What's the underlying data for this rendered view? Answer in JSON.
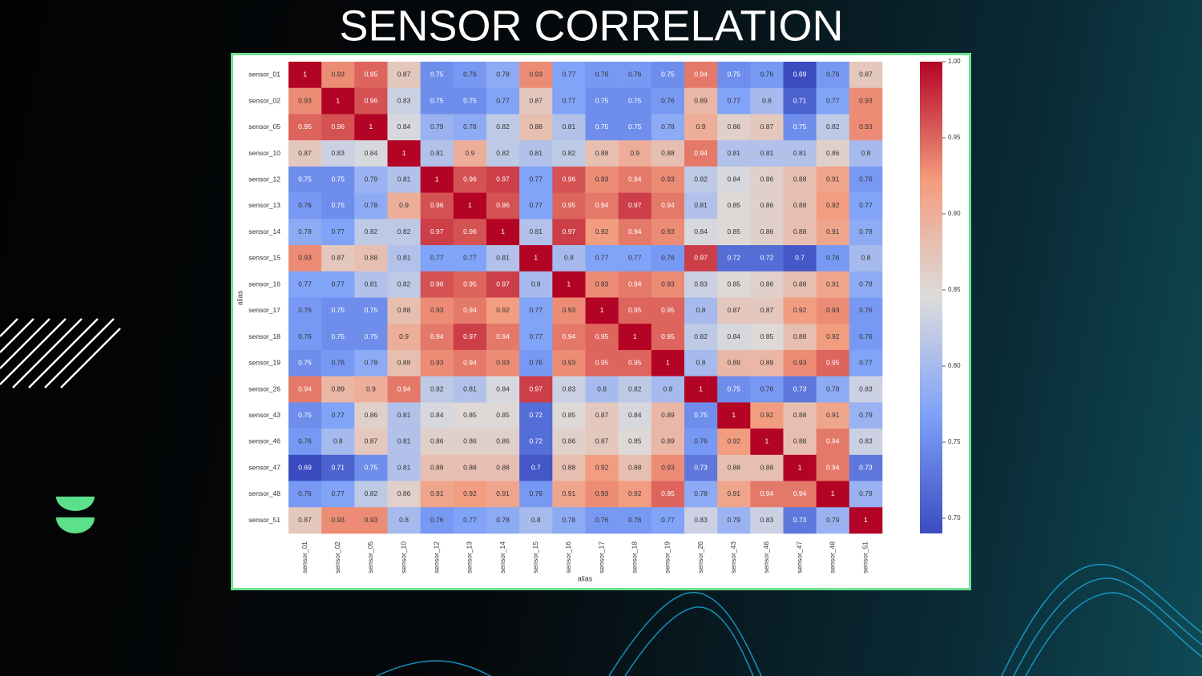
{
  "chart_data": {
    "type": "heatmap",
    "title": "SENSOR CORRELATION",
    "xlabel": "alias",
    "ylabel": "alias",
    "colormap": "coolwarm",
    "categories": [
      "sensor_01",
      "sensor_02",
      "sensor_05",
      "sensor_10",
      "sensor_12",
      "sensor_13",
      "sensor_14",
      "sensor_15",
      "sensor_16",
      "sensor_17",
      "sensor_18",
      "sensor_19",
      "sensor_26",
      "sensor_43",
      "sensor_46",
      "sensor_47",
      "sensor_48",
      "sensor_51"
    ],
    "values": [
      [
        1,
        0.93,
        0.95,
        0.87,
        0.75,
        0.76,
        0.78,
        0.93,
        0.77,
        0.76,
        0.76,
        0.75,
        0.94,
        0.75,
        0.76,
        0.69,
        0.76,
        0.87
      ],
      [
        0.93,
        1,
        0.96,
        0.83,
        0.75,
        0.75,
        0.77,
        0.87,
        0.77,
        0.75,
        0.75,
        0.76,
        0.89,
        0.77,
        0.8,
        0.71,
        0.77,
        0.93
      ],
      [
        0.95,
        0.96,
        1,
        0.84,
        0.79,
        0.78,
        0.82,
        0.88,
        0.81,
        0.75,
        0.75,
        0.78,
        0.9,
        0.86,
        0.87,
        0.75,
        0.82,
        0.93
      ],
      [
        0.87,
        0.83,
        0.84,
        1,
        0.81,
        0.9,
        0.82,
        0.81,
        0.82,
        0.88,
        0.9,
        0.88,
        0.94,
        0.81,
        0.81,
        0.81,
        0.86,
        0.8
      ],
      [
        0.75,
        0.75,
        0.79,
        0.81,
        1,
        0.96,
        0.97,
        0.77,
        0.96,
        0.93,
        0.94,
        0.93,
        0.82,
        0.84,
        0.86,
        0.88,
        0.91,
        0.76
      ],
      [
        0.76,
        0.75,
        0.78,
        0.9,
        0.96,
        1,
        0.96,
        0.77,
        0.95,
        0.94,
        0.97,
        0.94,
        0.81,
        0.85,
        0.86,
        0.88,
        0.92,
        0.77
      ],
      [
        0.78,
        0.77,
        0.82,
        0.82,
        0.97,
        0.96,
        1,
        0.81,
        0.97,
        0.92,
        0.94,
        0.93,
        0.84,
        0.85,
        0.86,
        0.88,
        0.91,
        0.78
      ],
      [
        0.93,
        0.87,
        0.88,
        0.81,
        0.77,
        0.77,
        0.81,
        1,
        0.8,
        0.77,
        0.77,
        0.76,
        0.97,
        0.72,
        0.72,
        0.7,
        0.76,
        0.8
      ],
      [
        0.77,
        0.77,
        0.81,
        0.82,
        0.96,
        0.95,
        0.97,
        0.8,
        1,
        0.93,
        0.94,
        0.93,
        0.83,
        0.85,
        0.86,
        0.88,
        0.91,
        0.78
      ],
      [
        0.76,
        0.75,
        0.75,
        0.88,
        0.93,
        0.94,
        0.92,
        0.77,
        0.93,
        1,
        0.95,
        0.95,
        0.8,
        0.87,
        0.87,
        0.92,
        0.93,
        0.76
      ],
      [
        0.76,
        0.75,
        0.75,
        0.9,
        0.94,
        0.97,
        0.94,
        0.77,
        0.94,
        0.95,
        1,
        0.95,
        0.82,
        0.84,
        0.85,
        0.88,
        0.92,
        0.76
      ],
      [
        0.75,
        0.76,
        0.78,
        0.88,
        0.93,
        0.94,
        0.93,
        0.76,
        0.93,
        0.95,
        0.95,
        1,
        0.8,
        0.89,
        0.89,
        0.93,
        0.95,
        0.77
      ],
      [
        0.94,
        0.89,
        0.9,
        0.94,
        0.82,
        0.81,
        0.84,
        0.97,
        0.83,
        0.8,
        0.82,
        0.8,
        1,
        0.75,
        0.76,
        0.73,
        0.78,
        0.83
      ],
      [
        0.75,
        0.77,
        0.86,
        0.81,
        0.84,
        0.85,
        0.85,
        0.72,
        0.85,
        0.87,
        0.84,
        0.89,
        0.75,
        1,
        0.92,
        0.88,
        0.91,
        0.79
      ],
      [
        0.76,
        0.8,
        0.87,
        0.81,
        0.86,
        0.86,
        0.86,
        0.72,
        0.86,
        0.87,
        0.85,
        0.89,
        0.76,
        0.92,
        1,
        0.88,
        0.94,
        0.83
      ],
      [
        0.69,
        0.71,
        0.75,
        0.81,
        0.88,
        0.88,
        0.88,
        0.7,
        0.88,
        0.92,
        0.88,
        0.93,
        0.73,
        0.88,
        0.88,
        1,
        0.94,
        0.73
      ],
      [
        0.76,
        0.77,
        0.82,
        0.86,
        0.91,
        0.92,
        0.91,
        0.76,
        0.91,
        0.93,
        0.92,
        0.95,
        0.78,
        0.91,
        0.94,
        0.94,
        1,
        0.79
      ],
      [
        0.87,
        0.93,
        0.93,
        0.8,
        0.76,
        0.77,
        0.78,
        0.8,
        0.78,
        0.76,
        0.76,
        0.77,
        0.83,
        0.79,
        0.83,
        0.73,
        0.79,
        1
      ]
    ],
    "clim": [
      0.69,
      1
    ],
    "cticks": [
      {
        "value": 0.7,
        "label": "0.70"
      },
      {
        "value": 0.75,
        "label": "0.75"
      },
      {
        "value": 0.8,
        "label": "0.80"
      },
      {
        "value": 0.85,
        "label": "0.85"
      },
      {
        "value": 0.9,
        "label": "0.90"
      },
      {
        "value": 0.95,
        "label": "0.95"
      },
      {
        "value": 1,
        "label": "1.00"
      }
    ]
  }
}
